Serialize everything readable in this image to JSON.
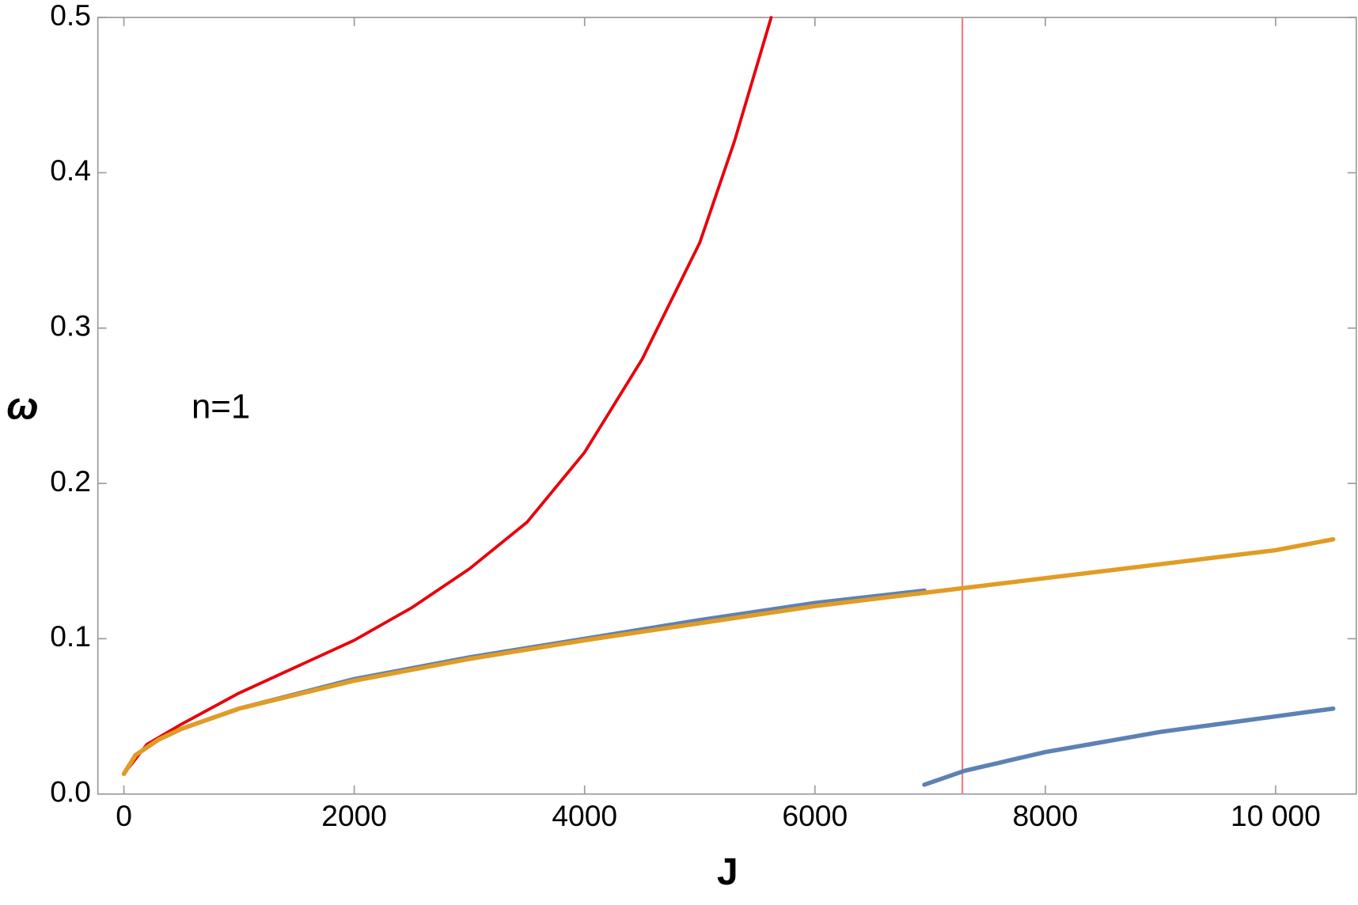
{
  "chart_data": {
    "type": "line",
    "annotation": "n=1",
    "xlabel": "J",
    "ylabel": "ω",
    "xlim": [
      -226,
      10700
    ],
    "ylim": [
      0,
      0.5
    ],
    "xticks": [
      0,
      2000,
      4000,
      6000,
      8000,
      {
        "value": 10000,
        "label": "10 000"
      }
    ],
    "yticks": [
      {
        "value": 0,
        "label": "0.0"
      },
      0.1,
      0.2,
      0.3,
      0.4,
      0.5
    ],
    "vline": 7280,
    "vline_color": "#f08080",
    "series": [
      {
        "color": "#e8000b",
        "x": [
          0,
          200,
          500,
          1000,
          1500,
          2000,
          2500,
          3000,
          3500,
          4000,
          4500,
          5000,
          5300,
          5620
        ],
        "values": [
          0.013,
          0.032,
          0.045,
          0.065,
          0.082,
          0.099,
          0.12,
          0.145,
          0.175,
          0.22,
          0.28,
          0.355,
          0.42,
          0.5
        ]
      },
      {
        "color": "#5e81b5",
        "x": [
          0,
          100,
          300,
          500,
          1000,
          2000,
          3000,
          4000,
          5000,
          6000,
          6950
        ],
        "values": [
          0.013,
          0.025,
          0.035,
          0.042,
          0.055,
          0.074,
          0.088,
          0.1,
          0.112,
          0.123,
          0.131
        ]
      },
      {
        "color": "#5e81b5",
        "x": [
          6950,
          7300,
          8000,
          9000,
          10000,
          10500
        ],
        "values": [
          0.006,
          0.015,
          0.027,
          0.04,
          0.05,
          0.055
        ]
      },
      {
        "color": "#e19c24",
        "x": [
          0,
          100,
          300,
          500,
          1000,
          2000,
          3000,
          4000,
          5000,
          6000,
          7000,
          8000,
          9000,
          10000,
          10500
        ],
        "values": [
          0.013,
          0.025,
          0.035,
          0.042,
          0.055,
          0.073,
          0.087,
          0.099,
          0.11,
          0.121,
          0.13,
          0.139,
          0.148,
          0.157,
          0.164
        ]
      }
    ]
  }
}
